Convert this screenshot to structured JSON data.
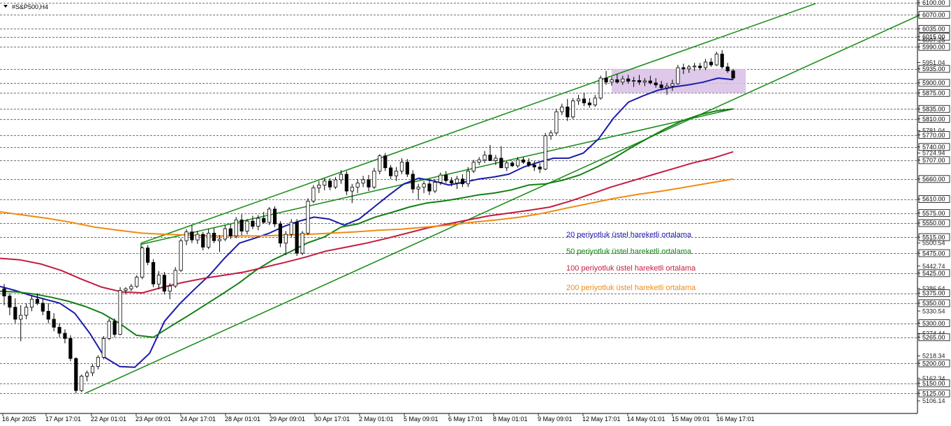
{
  "chart_data": {
    "type": "candlestick",
    "title": "#S&P500,H4",
    "y_axis": {
      "min": 5106.14,
      "max": 6100.0,
      "tick_labels": [
        "6100.00",
        "6070.00",
        "6035.00",
        "6015.00",
        "6007.25",
        "5990.00",
        "5951.04",
        "5935.00",
        "5900.00",
        "5875.00",
        "5835.00",
        "5810.00",
        "5781.04",
        "5770.00",
        "5740.00",
        "5724.94",
        "5707.00",
        "5660.00",
        "5610.00",
        "5575.00",
        "5550.00",
        "5515.00",
        "5500.54",
        "5475.00",
        "5442.74",
        "5425.00",
        "5386.64",
        "5375.00",
        "5350.00",
        "5330.54",
        "5300.00",
        "5274.44",
        "5265.00",
        "5218.34",
        "5200.00",
        "5162.34",
        "5150.00",
        "5125.00",
        "5106.14"
      ],
      "highlighted_levels": [
        "6100.00",
        "6070.00",
        "6035.00",
        "6015.00",
        "5990.00",
        "5935.00",
        "5900.00",
        "5875.00",
        "5835.00",
        "5810.00",
        "5770.00",
        "5740.00",
        "5707.00",
        "5660.00",
        "5610.00",
        "5575.00",
        "5550.00",
        "5515.00",
        "5475.00",
        "5425.00",
        "5375.00",
        "5350.00",
        "5300.00",
        "5265.00",
        "5200.00",
        "5150.00",
        "5125.00"
      ]
    },
    "x_axis": {
      "labels": [
        "16 Apr 2025",
        "17 Apr 17:01",
        "22 Apr 01:01",
        "23 Apr 09:01",
        "24 Apr 17:01",
        "28 Apr 01:01",
        "29 Apr 09:01",
        "30 Apr 17:01",
        "2 May 01:01",
        "5 May 09:01",
        "6 May 17:01",
        "8 May 01:01",
        "9 May 09:01",
        "12 May 17:01",
        "14 May 01:01",
        "15 May 09:01",
        "16 May 17:01"
      ]
    },
    "candles_ohlc": [
      [
        5386,
        5398,
        5345,
        5368
      ],
      [
        5368,
        5375,
        5320,
        5340
      ],
      [
        5340,
        5362,
        5300,
        5310
      ],
      [
        5310,
        5345,
        5255,
        5320
      ],
      [
        5320,
        5350,
        5310,
        5340
      ],
      [
        5340,
        5368,
        5330,
        5360
      ],
      [
        5360,
        5375,
        5345,
        5350
      ],
      [
        5350,
        5362,
        5320,
        5330
      ],
      [
        5330,
        5350,
        5300,
        5310
      ],
      [
        5310,
        5325,
        5280,
        5290
      ],
      [
        5290,
        5300,
        5265,
        5275
      ],
      [
        5275,
        5285,
        5250,
        5262
      ],
      [
        5262,
        5270,
        5205,
        5212
      ],
      [
        5212,
        5215,
        5125,
        5132
      ],
      [
        5132,
        5172,
        5128,
        5168
      ],
      [
        5168,
        5182,
        5155,
        5176
      ],
      [
        5176,
        5198,
        5168,
        5192
      ],
      [
        5192,
        5220,
        5185,
        5215
      ],
      [
        5215,
        5268,
        5210,
        5262
      ],
      [
        5262,
        5312,
        5258,
        5305
      ],
      [
        5305,
        5312,
        5265,
        5272
      ],
      [
        5272,
        5390,
        5270,
        5382
      ],
      [
        5382,
        5390,
        5372,
        5386
      ],
      [
        5386,
        5398,
        5380,
        5392
      ],
      [
        5392,
        5420,
        5388,
        5415
      ],
      [
        5415,
        5492,
        5410,
        5488
      ],
      [
        5488,
        5495,
        5445,
        5452
      ],
      [
        5452,
        5460,
        5390,
        5398
      ],
      [
        5398,
        5430,
        5385,
        5420
      ],
      [
        5420,
        5428,
        5372,
        5380
      ],
      [
        5380,
        5400,
        5360,
        5393
      ],
      [
        5393,
        5440,
        5388,
        5432
      ],
      [
        5432,
        5512,
        5428,
        5506
      ],
      [
        5506,
        5535,
        5495,
        5528
      ],
      [
        5528,
        5545,
        5500,
        5508
      ],
      [
        5508,
        5530,
        5498,
        5522
      ],
      [
        5522,
        5528,
        5482,
        5490
      ],
      [
        5490,
        5535,
        5485,
        5525
      ],
      [
        5525,
        5538,
        5500,
        5506
      ],
      [
        5506,
        5520,
        5478,
        5510
      ],
      [
        5510,
        5545,
        5505,
        5536
      ],
      [
        5536,
        5548,
        5510,
        5518
      ],
      [
        5518,
        5565,
        5512,
        5558
      ],
      [
        5558,
        5572,
        5520,
        5530
      ],
      [
        5530,
        5560,
        5522,
        5555
      ],
      [
        5555,
        5568,
        5535,
        5542
      ],
      [
        5542,
        5570,
        5532,
        5562
      ],
      [
        5562,
        5578,
        5548,
        5552
      ],
      [
        5552,
        5590,
        5545,
        5585
      ],
      [
        5585,
        5592,
        5540,
        5548
      ],
      [
        5548,
        5555,
        5490,
        5500
      ],
      [
        5500,
        5530,
        5470,
        5522
      ],
      [
        5522,
        5560,
        5515,
        5552
      ],
      [
        5552,
        5560,
        5468,
        5475
      ],
      [
        5475,
        5530,
        5470,
        5525
      ],
      [
        5525,
        5612,
        5520,
        5605
      ],
      [
        5605,
        5645,
        5600,
        5638
      ],
      [
        5638,
        5655,
        5625,
        5645
      ],
      [
        5645,
        5662,
        5632,
        5655
      ],
      [
        5655,
        5662,
        5632,
        5640
      ],
      [
        5640,
        5665,
        5635,
        5658
      ],
      [
        5658,
        5682,
        5648,
        5672
      ],
      [
        5672,
        5680,
        5620,
        5630
      ],
      [
        5630,
        5648,
        5600,
        5640
      ],
      [
        5640,
        5660,
        5625,
        5650
      ],
      [
        5650,
        5668,
        5640,
        5658
      ],
      [
        5658,
        5670,
        5630,
        5640
      ],
      [
        5640,
        5688,
        5635,
        5680
      ],
      [
        5680,
        5722,
        5672,
        5718
      ],
      [
        5718,
        5725,
        5680,
        5688
      ],
      [
        5688,
        5695,
        5660,
        5668
      ],
      [
        5668,
        5690,
        5655,
        5680
      ],
      [
        5680,
        5712,
        5672,
        5702
      ],
      [
        5702,
        5710,
        5665,
        5672
      ],
      [
        5672,
        5682,
        5625,
        5635
      ],
      [
        5635,
        5648,
        5608,
        5640
      ],
      [
        5640,
        5655,
        5625,
        5648
      ],
      [
        5648,
        5660,
        5620,
        5630
      ],
      [
        5630,
        5660,
        5625,
        5652
      ],
      [
        5652,
        5676,
        5645,
        5670
      ],
      [
        5670,
        5680,
        5650,
        5656
      ],
      [
        5656,
        5665,
        5642,
        5650
      ],
      [
        5650,
        5668,
        5635,
        5660
      ],
      [
        5660,
        5672,
        5640,
        5648
      ],
      [
        5648,
        5690,
        5640,
        5680
      ],
      [
        5680,
        5708,
        5675,
        5702
      ],
      [
        5702,
        5715,
        5695,
        5708
      ],
      [
        5708,
        5730,
        5700,
        5720
      ],
      [
        5720,
        5745,
        5712,
        5706
      ],
      [
        5706,
        5720,
        5695,
        5712
      ],
      [
        5712,
        5742,
        5690,
        5688
      ],
      [
        5688,
        5705,
        5680,
        5700
      ],
      [
        5700,
        5705,
        5690,
        5693
      ],
      [
        5693,
        5715,
        5688,
        5708
      ],
      [
        5708,
        5715,
        5698,
        5702
      ],
      [
        5702,
        5712,
        5690,
        5695
      ],
      [
        5695,
        5705,
        5680,
        5690
      ],
      [
        5690,
        5700,
        5675,
        5685
      ],
      [
        5685,
        5775,
        5682,
        5768
      ],
      [
        5768,
        5782,
        5758,
        5775
      ],
      [
        5775,
        5835,
        5770,
        5828
      ],
      [
        5828,
        5848,
        5820,
        5840
      ],
      [
        5840,
        5860,
        5805,
        5815
      ],
      [
        5815,
        5862,
        5810,
        5855
      ],
      [
        5855,
        5870,
        5845,
        5860
      ],
      [
        5860,
        5875,
        5842,
        5850
      ],
      [
        5850,
        5862,
        5838,
        5845
      ],
      [
        5845,
        5870,
        5840,
        5862
      ],
      [
        5862,
        5918,
        5858,
        5912
      ],
      [
        5912,
        5930,
        5895,
        5902
      ],
      [
        5902,
        5915,
        5893,
        5908
      ],
      [
        5908,
        5922,
        5898,
        5902
      ],
      [
        5902,
        5918,
        5895,
        5910
      ],
      [
        5910,
        5920,
        5898,
        5904
      ],
      [
        5904,
        5915,
        5890,
        5906
      ],
      [
        5906,
        5920,
        5895,
        5902
      ],
      [
        5902,
        5912,
        5892,
        5905
      ],
      [
        5905,
        5918,
        5896,
        5900
      ],
      [
        5900,
        5912,
        5888,
        5895
      ],
      [
        5895,
        5905,
        5882,
        5888
      ],
      [
        5888,
        5900,
        5870,
        5892
      ],
      [
        5892,
        5908,
        5880,
        5898
      ],
      [
        5898,
        5945,
        5895,
        5938
      ],
      [
        5938,
        5948,
        5922,
        5935
      ],
      [
        5935,
        5945,
        5925,
        5940
      ],
      [
        5940,
        5950,
        5930,
        5942
      ],
      [
        5942,
        5950,
        5932,
        5938
      ],
      [
        5938,
        5960,
        5932,
        5952
      ],
      [
        5952,
        5962,
        5940,
        5945
      ],
      [
        5945,
        5978,
        5942,
        5972
      ],
      [
        5972,
        5982,
        5935,
        5940
      ],
      [
        5940,
        5950,
        5925,
        5930
      ],
      [
        5930,
        5935,
        5908,
        5912
      ]
    ],
    "series": [
      {
        "name": "20 periyotluk üstel hareketli ortalama",
        "color": "#1a1aa8",
        "values": [
          5392,
          5382,
          5370,
          5360,
          5350,
          5325,
          5275,
          5215,
          5192,
          5190,
          5225,
          5305,
          5348,
          5385,
          5420,
          5462,
          5500,
          5512,
          5525,
          5542,
          5555,
          5565,
          5560,
          5545,
          5560,
          5590,
          5620,
          5648,
          5662,
          5655,
          5645,
          5652,
          5660,
          5665,
          5672,
          5690,
          5702,
          5712,
          5712,
          5725,
          5760,
          5812,
          5852,
          5868,
          5882,
          5890,
          5895,
          5902,
          5912,
          5908
        ]
      },
      {
        "name": "50 periyotluk üstel hareketli ortalama",
        "color": "#128012",
        "values": [
          5380,
          5378,
          5373,
          5365,
          5355,
          5342,
          5325,
          5300,
          5270,
          5265,
          5292,
          5318,
          5345,
          5372,
          5400,
          5432,
          5458,
          5478,
          5500,
          5515,
          5540,
          5548,
          5565,
          5577,
          5590,
          5600,
          5605,
          5612,
          5620,
          5625,
          5633,
          5645,
          5648,
          5657,
          5670,
          5690,
          5712,
          5738,
          5762,
          5785,
          5805,
          5820,
          5830,
          5835
        ]
      },
      {
        "name": "100 periyotluk üstel hareketli ortalama",
        "color": "#c41b40",
        "values": [
          5462,
          5458,
          5448,
          5432,
          5410,
          5390,
          5378,
          5376,
          5390,
          5402,
          5412,
          5420,
          5428,
          5440,
          5452,
          5465,
          5480,
          5490,
          5500,
          5512,
          5525,
          5538,
          5548,
          5558,
          5568,
          5575,
          5582,
          5590,
          5605,
          5622,
          5640,
          5655,
          5670,
          5685,
          5700,
          5712,
          5728
        ]
      },
      {
        "name": "200 periyotluk üstel hareketli ortalama",
        "color": "#f08a10",
        "values": [
          5578,
          5570,
          5562,
          5552,
          5540,
          5532,
          5525,
          5522,
          5520,
          5518,
          5518,
          5518,
          5520,
          5522,
          5525,
          5528,
          5532,
          5535,
          5540,
          5545,
          5552,
          5558,
          5565,
          5575,
          5588,
          5600,
          5612,
          5622,
          5630,
          5640,
          5650,
          5660
        ]
      }
    ],
    "channel_lines_price": {
      "upper": [
        [
          5500,
          6098
        ]
      ],
      "lower": [
        [
          5125,
          6070
        ]
      ],
      "middle": [
        [
          5497,
          5835
        ]
      ]
    },
    "consolidation_box": {
      "from": 5875,
      "to": 5935,
      "color": "#d8c0e6"
    }
  }
}
